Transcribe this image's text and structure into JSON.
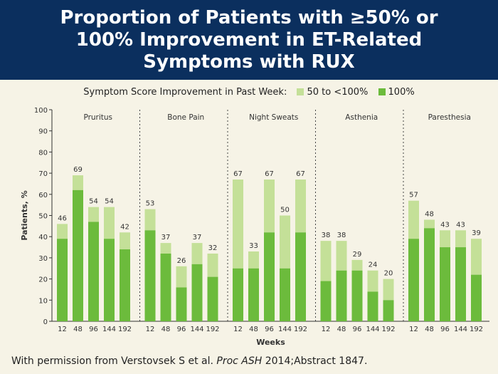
{
  "header": {
    "title_line1": "Proportion of Patients with ≥50% or",
    "title_line2": "100% Improvement in ET-Related",
    "title_line3": "Symptoms with RUX"
  },
  "legend": {
    "label": "Symptom Score Improvement in Past Week:",
    "items": [
      {
        "name": "50 to <100%",
        "color": "#c4e098"
      },
      {
        "name": "100%",
        "color": "#6cbb3c"
      }
    ]
  },
  "footer": {
    "prefix": "With permission from Verstovsek S et al. ",
    "journal": "Proc ASH",
    "suffix": " 2014;Abstract 1847."
  },
  "chart_data": {
    "type": "bar",
    "stacked": true,
    "ylabel": "Patients, %",
    "xlabel": "Weeks",
    "ylim": [
      0,
      100
    ],
    "yticks": [
      0,
      10,
      20,
      30,
      40,
      50,
      60,
      70,
      80,
      90,
      100
    ],
    "week_labels": [
      "12",
      "48",
      "96",
      "144",
      "192"
    ],
    "groups": [
      {
        "name": "Pruritus",
        "total": [
          46,
          69,
          54,
          54,
          42
        ],
        "full": [
          39,
          62,
          47,
          39,
          34
        ]
      },
      {
        "name": "Bone Pain",
        "total": [
          53,
          37,
          26,
          37,
          32
        ],
        "full": [
          43,
          32,
          16,
          27,
          21
        ]
      },
      {
        "name": "Night Sweats",
        "total": [
          67,
          33,
          67,
          50,
          67
        ],
        "full": [
          25,
          25,
          42,
          25,
          42
        ]
      },
      {
        "name": "Asthenia",
        "total": [
          38,
          38,
          29,
          24,
          20
        ],
        "full": [
          19,
          24,
          24,
          14,
          10
        ]
      },
      {
        "name": "Paresthesia",
        "total": [
          57,
          48,
          43,
          43,
          39
        ],
        "full": [
          39,
          44,
          35,
          35,
          22
        ]
      }
    ],
    "colors": {
      "partial": "#c4e098",
      "full": "#6cbb3c"
    }
  }
}
